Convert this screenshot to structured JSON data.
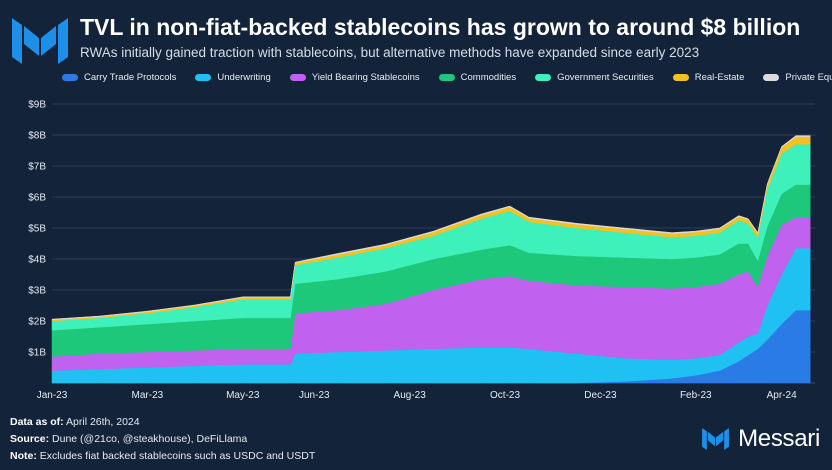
{
  "header": {
    "title": "TVL in non-fiat-backed stablecoins has grown to around $8 billion",
    "subtitle": "RWAs initially gained traction with stablecoins, but alternative methods have expanded since early 2023"
  },
  "colors": {
    "background": "#13233a",
    "brand": "#1e8fe8"
  },
  "footer": {
    "data_as_of_label": "Data as of:",
    "data_as_of_value": "April 26th, 2024",
    "source_label": "Source:",
    "source_value": "Dune (@21co, @steakhouse), DeFiLlama",
    "note_label": "Note:",
    "note_value": "Excludes fiat backed stablecoins such as USDC and USDT"
  },
  "brand": {
    "name": "Messari",
    "logo_icon": "messari-logo-icon"
  },
  "chart_data": {
    "type": "area",
    "stacked": true,
    "title": "TVL in non-fiat-backed stablecoins has grown to around $8 billion",
    "xlabel": "",
    "ylabel": "",
    "y_unit": "$B",
    "ylim": [
      0,
      9
    ],
    "yticks": [
      "$1B",
      "$2B",
      "$3B",
      "$4B",
      "$5B",
      "$6B",
      "$7B",
      "$8B",
      "$9B"
    ],
    "ytick_values": [
      1,
      2,
      3,
      4,
      5,
      6,
      7,
      8,
      9
    ],
    "grid": true,
    "legend_position": "top",
    "x_range": [
      0,
      16
    ],
    "x_ticks": [
      {
        "label": "Jan-23",
        "x": 0
      },
      {
        "label": "Mar-23",
        "x": 2
      },
      {
        "label": "May-23",
        "x": 4
      },
      {
        "label": "Jun-23",
        "x": 5.5
      },
      {
        "label": "Aug-23",
        "x": 7.5
      },
      {
        "label": "Oct-23",
        "x": 9.5
      },
      {
        "label": "Dec-23",
        "x": 11.5
      },
      {
        "label": "Feb-23",
        "x": 13.5
      },
      {
        "label": "Apr-24",
        "x": 15.3
      }
    ],
    "x": [
      0,
      1,
      2,
      3,
      4,
      5,
      5.1,
      6,
      7,
      8,
      9,
      9.6,
      10,
      11,
      12,
      13,
      13.5,
      14,
      14.4,
      14.6,
      14.8,
      15,
      15.3,
      15.6,
      15.9
    ],
    "series": [
      {
        "name": "Carry Trade Protocols",
        "color": "#2b7be6",
        "values": [
          0,
          0,
          0,
          0,
          0,
          0,
          0,
          0,
          0,
          0,
          0,
          0,
          0,
          0,
          0.05,
          0.15,
          0.25,
          0.4,
          0.7,
          0.9,
          1.1,
          1.4,
          1.9,
          2.35,
          2.35
        ]
      },
      {
        "name": "Underwriting",
        "color": "#1fc1f2",
        "values": [
          0.4,
          0.45,
          0.5,
          0.55,
          0.6,
          0.6,
          0.95,
          1.0,
          1.05,
          1.1,
          1.15,
          1.15,
          1.1,
          0.95,
          0.75,
          0.6,
          0.55,
          0.5,
          0.6,
          0.6,
          0.5,
          1.1,
          1.6,
          2.0,
          2.0
        ]
      },
      {
        "name": "Yield Bearing Stablecoins",
        "color": "#c061ef",
        "values": [
          0.45,
          0.5,
          0.5,
          0.5,
          0.5,
          0.5,
          1.3,
          1.35,
          1.5,
          1.9,
          2.2,
          2.3,
          2.2,
          2.2,
          2.3,
          2.3,
          2.3,
          2.3,
          2.2,
          2.1,
          1.5,
          1.6,
          1.6,
          1.0,
          1.0
        ]
      },
      {
        "name": "Commodities",
        "color": "#1ec87a",
        "values": [
          0.85,
          0.85,
          0.9,
          0.95,
          1.0,
          1.0,
          0.95,
          1.0,
          1.05,
          1.0,
          0.95,
          1.0,
          0.9,
          0.95,
          0.95,
          0.95,
          0.95,
          0.95,
          1.0,
          0.9,
          0.85,
          0.95,
          1.0,
          1.05,
          1.05
        ]
      },
      {
        "name": "Government Securities",
        "color": "#3ef0b9",
        "values": [
          0.3,
          0.3,
          0.35,
          0.45,
          0.6,
          0.6,
          0.6,
          0.7,
          0.75,
          0.75,
          1.0,
          1.1,
          1.0,
          0.9,
          0.8,
          0.7,
          0.7,
          0.7,
          0.75,
          0.65,
          0.75,
          1.2,
          1.3,
          1.3,
          1.3
        ]
      },
      {
        "name": "Real-Estate",
        "color": "#f5c022",
        "values": [
          0.04,
          0.04,
          0.05,
          0.05,
          0.06,
          0.06,
          0.08,
          0.1,
          0.1,
          0.12,
          0.12,
          0.13,
          0.12,
          0.12,
          0.12,
          0.12,
          0.12,
          0.12,
          0.12,
          0.12,
          0.12,
          0.15,
          0.2,
          0.25,
          0.25
        ]
      },
      {
        "name": "Private Equities",
        "color": "#dcdcdc",
        "values": [
          0.02,
          0.02,
          0.02,
          0.02,
          0.02,
          0.02,
          0.02,
          0.03,
          0.03,
          0.03,
          0.03,
          0.03,
          0.03,
          0.03,
          0.03,
          0.03,
          0.03,
          0.03,
          0.03,
          0.03,
          0.03,
          0.03,
          0.03,
          0.03,
          0.03
        ]
      }
    ]
  }
}
